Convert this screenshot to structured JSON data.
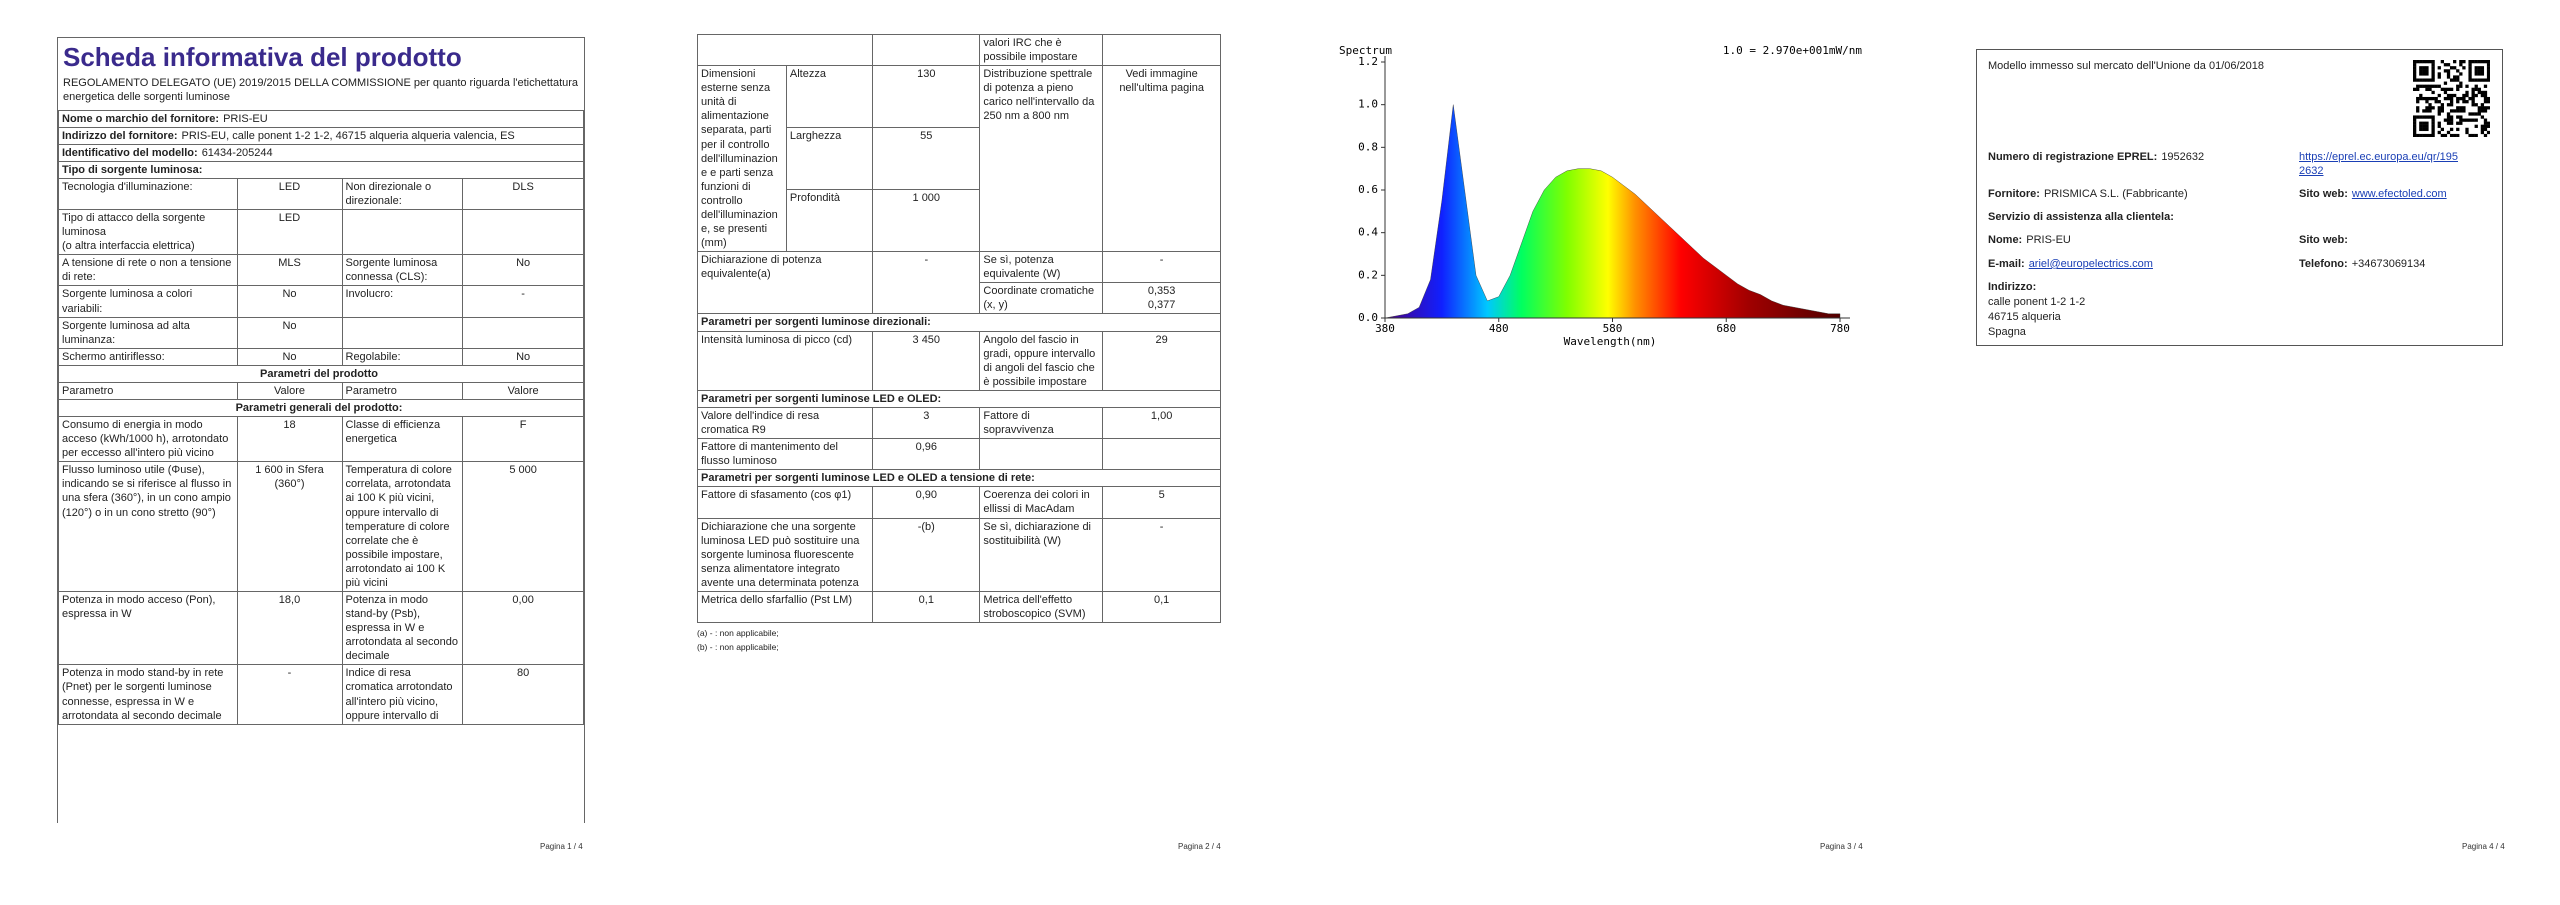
{
  "pages": [
    {
      "title": "Scheda informativa del prodotto",
      "subtitle": "REGOLAMENTO DELEGATO (UE) 2019/2015 DELLA COMMISSIONE per quanto riguarda l'etichettatura energetica delle sorgenti luminose",
      "rows": [
        [
          {
            "label": "Nome o marchio del fornitore:",
            "value": "PRIS-EU"
          }
        ],
        [
          {
            "label": "Indirizzo del fornitore:",
            "value": "PRIS-EU, calle ponent 1-2 1-2, 46715 alqueria alqueria valencia, ES"
          }
        ],
        [
          {
            "label": "Identificativo del modello:",
            "value": "61434-205244"
          }
        ],
        [
          {
            "label": "Tipo di sorgente luminosa:"
          }
        ],
        [
          "Tecnologia d'illuminazione:",
          "LED",
          "Non direzionale o direzionale:",
          "DLS"
        ],
        [
          "Tipo di attacco della sorgente luminosa\n(o altra interfaccia elettrica)",
          "LED",
          null,
          null
        ],
        [
          "A tensione di rete o non a tensione di rete:",
          "MLS",
          "Sorgente luminosa connessa (CLS):",
          "No"
        ],
        [
          "Sorgente luminosa a colori variabili:",
          "No",
          "Involucro:",
          "-"
        ],
        [
          "Sorgente luminosa ad alta luminanza:",
          "No",
          null,
          null
        ],
        [
          "Schermo antiriflesso:",
          "No",
          "Regolabile:",
          "No"
        ],
        [
          {
            "label": "Parametri del prodotto"
          }
        ],
        [
          "Parametro",
          "Valore",
          "Parametro",
          "Valore"
        ],
        [
          {
            "label": "Parametri generali del prodotto:"
          }
        ],
        [
          "Consumo di energia in modo acceso (kWh/1000 h), arrotondato per eccesso all'intero più vicino",
          "18",
          "Classe di efficienza energetica",
          "F"
        ],
        [
          "Flusso luminoso utile (Φuse), indicando se si riferisce al flusso in una sfera (360°), in un cono ampio (120°) o in un cono stretto (90°)",
          "1 600 in Sfera (360°)",
          "Temperatura di colore correlata, arrotondata ai 100 K più vicini, oppure intervallo di temperature di colore correlate che è possibile impostare, arrotondato ai 100 K più vicini",
          "5 000"
        ],
        [
          "Potenza in modo acceso (Pon), espressa in W",
          "18,0",
          "Potenza in modo stand-by (Psb), espressa in W e arrotondata al secondo decimale",
          "0,00"
        ],
        [
          "Potenza in modo stand-by in rete (Pnet) per le sorgenti luminose connesse, espressa in W e arrotondata al secondo decimale",
          "-",
          "Indice di resa cromatica arrotondato all'intero più vicino, oppure intervallo di",
          "80"
        ]
      ],
      "footer": "Pagina 1 / 4"
    },
    {
      "rows": [
        [
          null,
          null,
          "valori IRC che è possibile impostare",
          null
        ],
        [
          "Dimensioni esterne senza unità di alimentazione separata, parti per il controllo dell'illuminazione e parti senza funzioni di controllo dell'illuminazione, se presenti (mm)",
          "Altezza",
          "130",
          "Distribuzione spettrale di potenza a pieno carico nell'intervallo da 250 nm a 800 nm",
          "Vedi immagine nell'ultima pagina"
        ],
        [
          "Larghezza",
          "55"
        ],
        [
          "Profondità",
          "1 000"
        ],
        [
          "Dichiarazione di potenza equivalente(a)",
          "-",
          "Se sì, potenza equivalente (W)",
          "-"
        ],
        [
          "Coordinate cromatiche (x, y)",
          "0,353\n0,377"
        ],
        [
          {
            "label": "Parametri per sorgenti luminose direzionali:"
          }
        ],
        [
          "Intensità luminosa di picco (cd)",
          "3 450",
          "Angolo del fascio in gradi, oppure intervallo di angoli del fascio che è possibile impostare",
          "29"
        ],
        [
          {
            "label": "Parametri per sorgenti luminose LED e OLED:"
          }
        ],
        [
          "Valore dell'indice di resa cromatica R9",
          "3",
          "Fattore di sopravvivenza",
          "1,00"
        ],
        [
          "Fattore di mantenimento del flusso luminoso",
          "0,96",
          null,
          null
        ],
        [
          {
            "label": "Parametri per sorgenti luminose LED e OLED a tensione di rete:"
          }
        ],
        [
          "Fattore di sfasamento (cos φ1)",
          "0,90",
          "Coerenza dei colori in ellissi di MacAdam",
          "5"
        ],
        [
          "Dichiarazione che una sorgente luminosa LED può sostituire una sorgente luminosa fluorescente senza alimentatore integrato avente una determinata potenza",
          "-(b)",
          "Se sì, dichiarazione di sostituibilità (W)",
          "-"
        ],
        [
          "Metrica dello sfarfallio (Pst LM)",
          "0,1",
          "Metrica dell'effetto stroboscopico (SVM)",
          "0,1"
        ]
      ],
      "notes": [
        "(a) - : non applicabile;",
        "(b) - : non applicabile;"
      ],
      "footer": "Pagina 2 / 4"
    },
    {
      "chart_data": {
        "type": "area",
        "title": "Spectrum",
        "annotation": "1.0 = 2.970e+001mW/nm",
        "xlabel": "Wavelength(nm)",
        "x": [
          380,
          390,
          400,
          410,
          420,
          430,
          440,
          450,
          460,
          470,
          480,
          490,
          500,
          510,
          520,
          530,
          540,
          550,
          560,
          570,
          580,
          590,
          600,
          610,
          620,
          630,
          640,
          650,
          660,
          670,
          680,
          690,
          700,
          710,
          720,
          730,
          740,
          750,
          760,
          770,
          780
        ],
        "values": [
          0.0,
          0.01,
          0.02,
          0.05,
          0.18,
          0.55,
          1.0,
          0.6,
          0.2,
          0.08,
          0.1,
          0.2,
          0.35,
          0.5,
          0.6,
          0.66,
          0.69,
          0.7,
          0.7,
          0.69,
          0.66,
          0.62,
          0.58,
          0.53,
          0.48,
          0.43,
          0.38,
          0.33,
          0.28,
          0.24,
          0.2,
          0.16,
          0.13,
          0.11,
          0.08,
          0.06,
          0.05,
          0.04,
          0.03,
          0.02,
          0.02
        ],
        "xlim": [
          380,
          780
        ],
        "xticks": [
          380,
          480,
          580,
          680,
          780
        ],
        "ylim": [
          0,
          1.2
        ],
        "yticks": [
          {
            "value": 0,
            "label": "0.0"
          },
          0.2,
          0.4,
          0.6,
          0.8,
          {
            "value": 1,
            "label": "1.0"
          },
          1.2
        ]
      },
      "footer": "Pagina 3 / 4"
    },
    {
      "market": "Modello immesso sul mercato dell'Unione da 01/06/2018",
      "eprel_label": "Numero di registrazione EPREL:",
      "eprel": "1952632",
      "eprel_link": "https://eprel.ec.europa.eu/qr/1952632",
      "supplier_label": "Fornitore:",
      "supplier": "PRISMICA S.L. (Fabbricante)",
      "web_label": "Sito web:",
      "web": "www.efectoled.com",
      "service_label": "Servizio di assistenza alla clientela:",
      "name_label": "Nome:",
      "name": "PRIS-EU",
      "web2_label": "Sito web:",
      "email_label": "E-mail:",
      "email": "ariel@europelectrics.com",
      "phone_label": "Telefono:",
      "phone": "+34673069134",
      "address_label": "Indirizzo:",
      "address": [
        "calle ponent 1-2 1-2",
        "46715 alqueria",
        "Spagna"
      ],
      "footer": "Pagina 4 / 4"
    }
  ]
}
